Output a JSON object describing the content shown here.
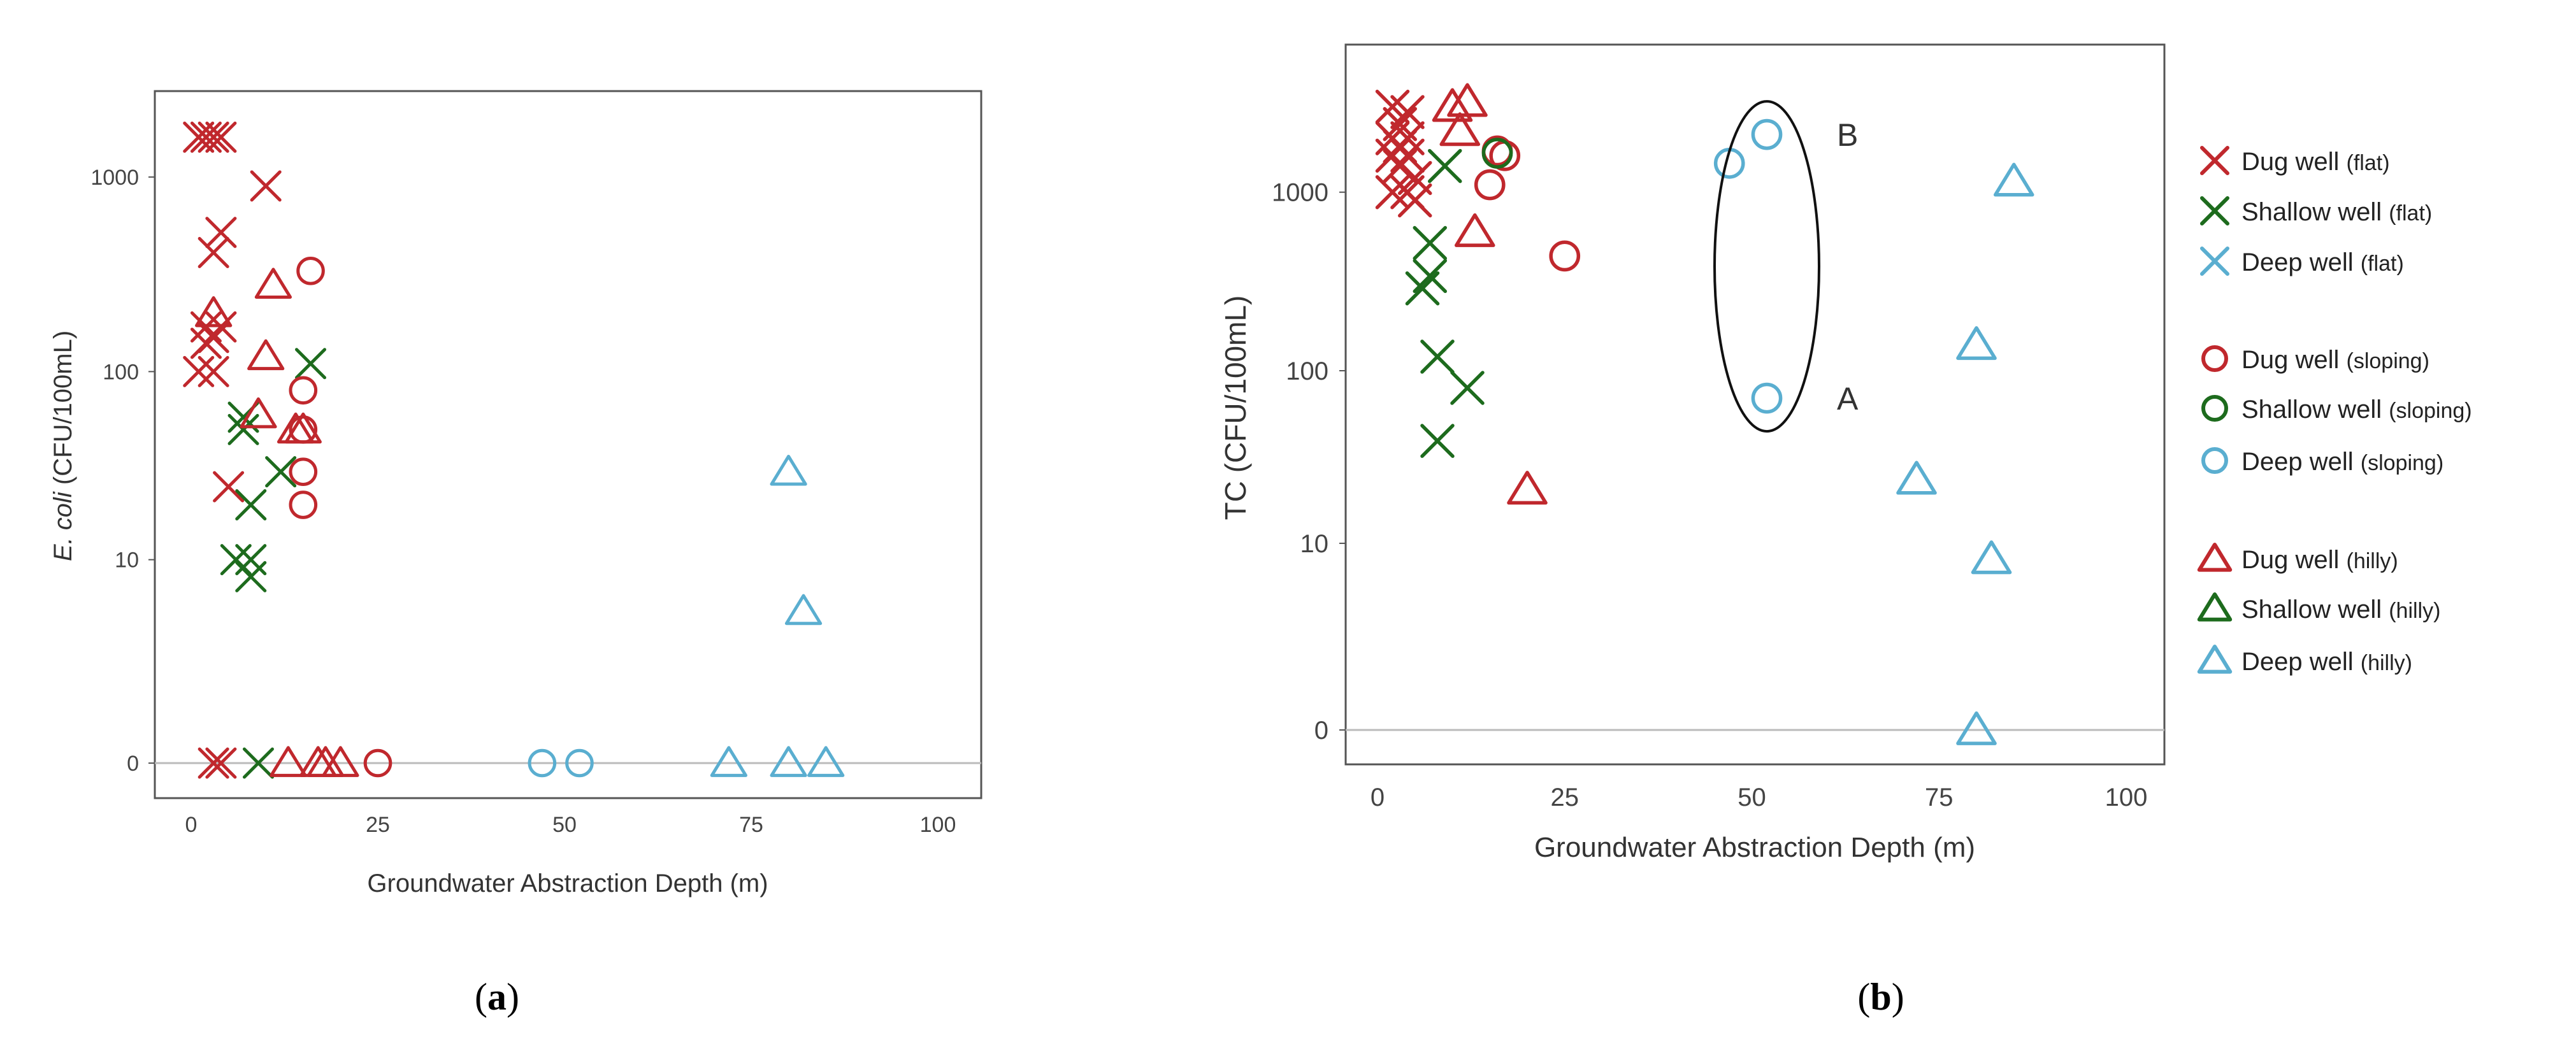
{
  "colors": {
    "dug": "#c0282d",
    "shallow": "#1d6b1d",
    "deep": "#5aaed0",
    "axis": "#555555",
    "zero_line": "#bbbbbb"
  },
  "charts": [
    {
      "caption": {
        "pre": "(",
        "letter": "a",
        "post": ")"
      },
      "chart_data": {
        "type": "scatter",
        "title": "",
        "xlabel": "Groundwater Abstraction Depth (m)",
        "ylabel_italic": "E. coli",
        "ylabel_rest": " (CFU/100mL)",
        "xlim": [
          -5,
          105
        ],
        "yscale": "log10(1+y)",
        "y_ticks": [
          "0",
          "10",
          "100",
          "1000"
        ],
        "x_ticks": [
          "0",
          "25",
          "50",
          "75",
          "100"
        ],
        "ymax": 2200,
        "series": [
          {
            "name": "Dug well (flat)",
            "group": "dug",
            "marker": "x",
            "points": [
              [
                1,
                1600
              ],
              [
                2,
                1600
              ],
              [
                3,
                1600
              ],
              [
                4,
                1600
              ],
              [
                10,
                900
              ],
              [
                4,
                520
              ],
              [
                3,
                410
              ],
              [
                2,
                170
              ],
              [
                3,
                150
              ],
              [
                4,
                170
              ],
              [
                2,
                140
              ],
              [
                1,
                100
              ],
              [
                3,
                100
              ],
              [
                5,
                25
              ],
              [
                3,
                0
              ],
              [
                4,
                0
              ]
            ]
          },
          {
            "name": "Shallow well (flat)",
            "group": "shallow",
            "marker": "x",
            "points": [
              [
                16,
                110
              ],
              [
                7,
                58
              ],
              [
                7,
                50
              ],
              [
                12,
                30
              ],
              [
                8,
                20
              ],
              [
                6,
                10
              ],
              [
                8,
                10
              ],
              [
                8,
                8
              ],
              [
                9,
                0
              ]
            ]
          },
          {
            "name": "Dug well (sloping)",
            "group": "dug",
            "marker": "o",
            "points": [
              [
                16,
                330
              ],
              [
                15,
                80
              ],
              [
                15,
                50
              ],
              [
                15,
                30
              ],
              [
                15,
                20
              ],
              [
                25,
                0
              ]
            ]
          },
          {
            "name": "Deep well (sloping)",
            "group": "deep",
            "marker": "o",
            "points": [
              [
                47,
                0
              ],
              [
                52,
                0
              ]
            ]
          },
          {
            "name": "Dug well (hilly)",
            "group": "dug",
            "marker": "tri",
            "points": [
              [
                3,
                200
              ],
              [
                11,
                280
              ],
              [
                10,
                120
              ],
              [
                9,
                60
              ],
              [
                14,
                50
              ],
              [
                15,
                50
              ],
              [
                13,
                0
              ],
              [
                17,
                0
              ],
              [
                18,
                0
              ],
              [
                20,
                0
              ]
            ]
          },
          {
            "name": "Deep well (hilly)",
            "group": "deep",
            "marker": "tri",
            "points": [
              [
                80,
                30
              ],
              [
                82,
                5
              ],
              [
                72,
                0
              ],
              [
                80,
                0
              ],
              [
                85,
                0
              ]
            ]
          }
        ]
      }
    },
    {
      "caption": {
        "pre": "(",
        "letter": "b",
        "post": ")"
      },
      "chart_data": {
        "type": "scatter",
        "title": "",
        "xlabel": "Groundwater Abstraction Depth (m)",
        "ylabel_italic": "",
        "ylabel_rest": "TC (CFU/100mL)",
        "xlim": [
          -5,
          105
        ],
        "yscale": "log10(1+y)",
        "y_ticks": [
          "0",
          "10",
          "100",
          "1000"
        ],
        "x_ticks": [
          "0",
          "25",
          "50",
          "75",
          "100"
        ],
        "ymax": 4500,
        "series": [
          {
            "name": "Dug well (flat)",
            "group": "dug",
            "marker": "x",
            "points": [
              [
                2,
                3000
              ],
              [
                4,
                2800
              ],
              [
                3,
                2400
              ],
              [
                2,
                2000
              ],
              [
                4,
                2000
              ],
              [
                3,
                1800
              ],
              [
                2,
                1600
              ],
              [
                4,
                1600
              ],
              [
                3,
                1400
              ],
              [
                5,
                1200
              ],
              [
                2,
                1000
              ],
              [
                4,
                1000
              ],
              [
                5,
                900
              ]
            ]
          },
          {
            "name": "Shallow well (flat)",
            "group": "shallow",
            "marker": "x",
            "points": [
              [
                9,
                1400
              ],
              [
                7,
                520
              ],
              [
                7,
                340
              ],
              [
                6,
                290
              ],
              [
                8,
                120
              ],
              [
                12,
                80
              ],
              [
                8,
                40
              ]
            ]
          },
          {
            "name": "Dug well (sloping)",
            "group": "dug",
            "marker": "o",
            "points": [
              [
                16,
                1700
              ],
              [
                17,
                1600
              ],
              [
                15,
                1100
              ],
              [
                25,
                440
              ]
            ]
          },
          {
            "name": "Shallow well (sloping)",
            "group": "shallow",
            "marker": "o",
            "points": [
              [
                16,
                1650
              ]
            ]
          },
          {
            "name": "Deep well (sloping)",
            "group": "deep",
            "marker": "o",
            "points": [
              [
                52,
                2100
              ],
              [
                47,
                1450
              ],
              [
                52,
                70
              ]
            ]
          },
          {
            "name": "Dug well (hilly)",
            "group": "dug",
            "marker": "tri",
            "points": [
              [
                10,
                3000
              ],
              [
                12,
                3200
              ],
              [
                11,
                2200
              ],
              [
                13,
                600
              ],
              [
                20,
                21
              ]
            ]
          },
          {
            "name": "Deep well (hilly)",
            "group": "deep",
            "marker": "tri",
            "points": [
              [
                85,
                1150
              ],
              [
                80,
                140
              ],
              [
                72,
                24
              ],
              [
                82,
                8
              ],
              [
                80,
                0
              ]
            ]
          }
        ],
        "annotations": [
          {
            "label": "B",
            "x": 52,
            "y": 2100
          },
          {
            "label": "A",
            "x": 52,
            "y": 70
          }
        ]
      }
    }
  ],
  "legend": {
    "items": [
      {
        "group": "dug",
        "marker": "x",
        "main": "Dug well",
        "sub": "(flat)"
      },
      {
        "group": "shallow",
        "marker": "x",
        "main": "Shallow well",
        "sub": "(flat)"
      },
      {
        "group": "deep",
        "marker": "x",
        "main": "Deep well",
        "sub": "(flat)"
      },
      {
        "group": "dug",
        "marker": "o",
        "main": "Dug  well",
        "sub": "(sloping)"
      },
      {
        "group": "shallow",
        "marker": "o",
        "main": "Shallow  well",
        "sub": "(sloping)"
      },
      {
        "group": "deep",
        "marker": "o",
        "main": "Deep well",
        "sub": "(sloping)"
      },
      {
        "group": "dug",
        "marker": "tri",
        "main": "Dug well",
        "sub": "(hilly)"
      },
      {
        "group": "shallow",
        "marker": "tri",
        "main": "Shallow well",
        "sub": "(hilly)"
      },
      {
        "group": "deep",
        "marker": "tri",
        "main": "Deep well",
        "sub": "(hilly)"
      }
    ]
  }
}
